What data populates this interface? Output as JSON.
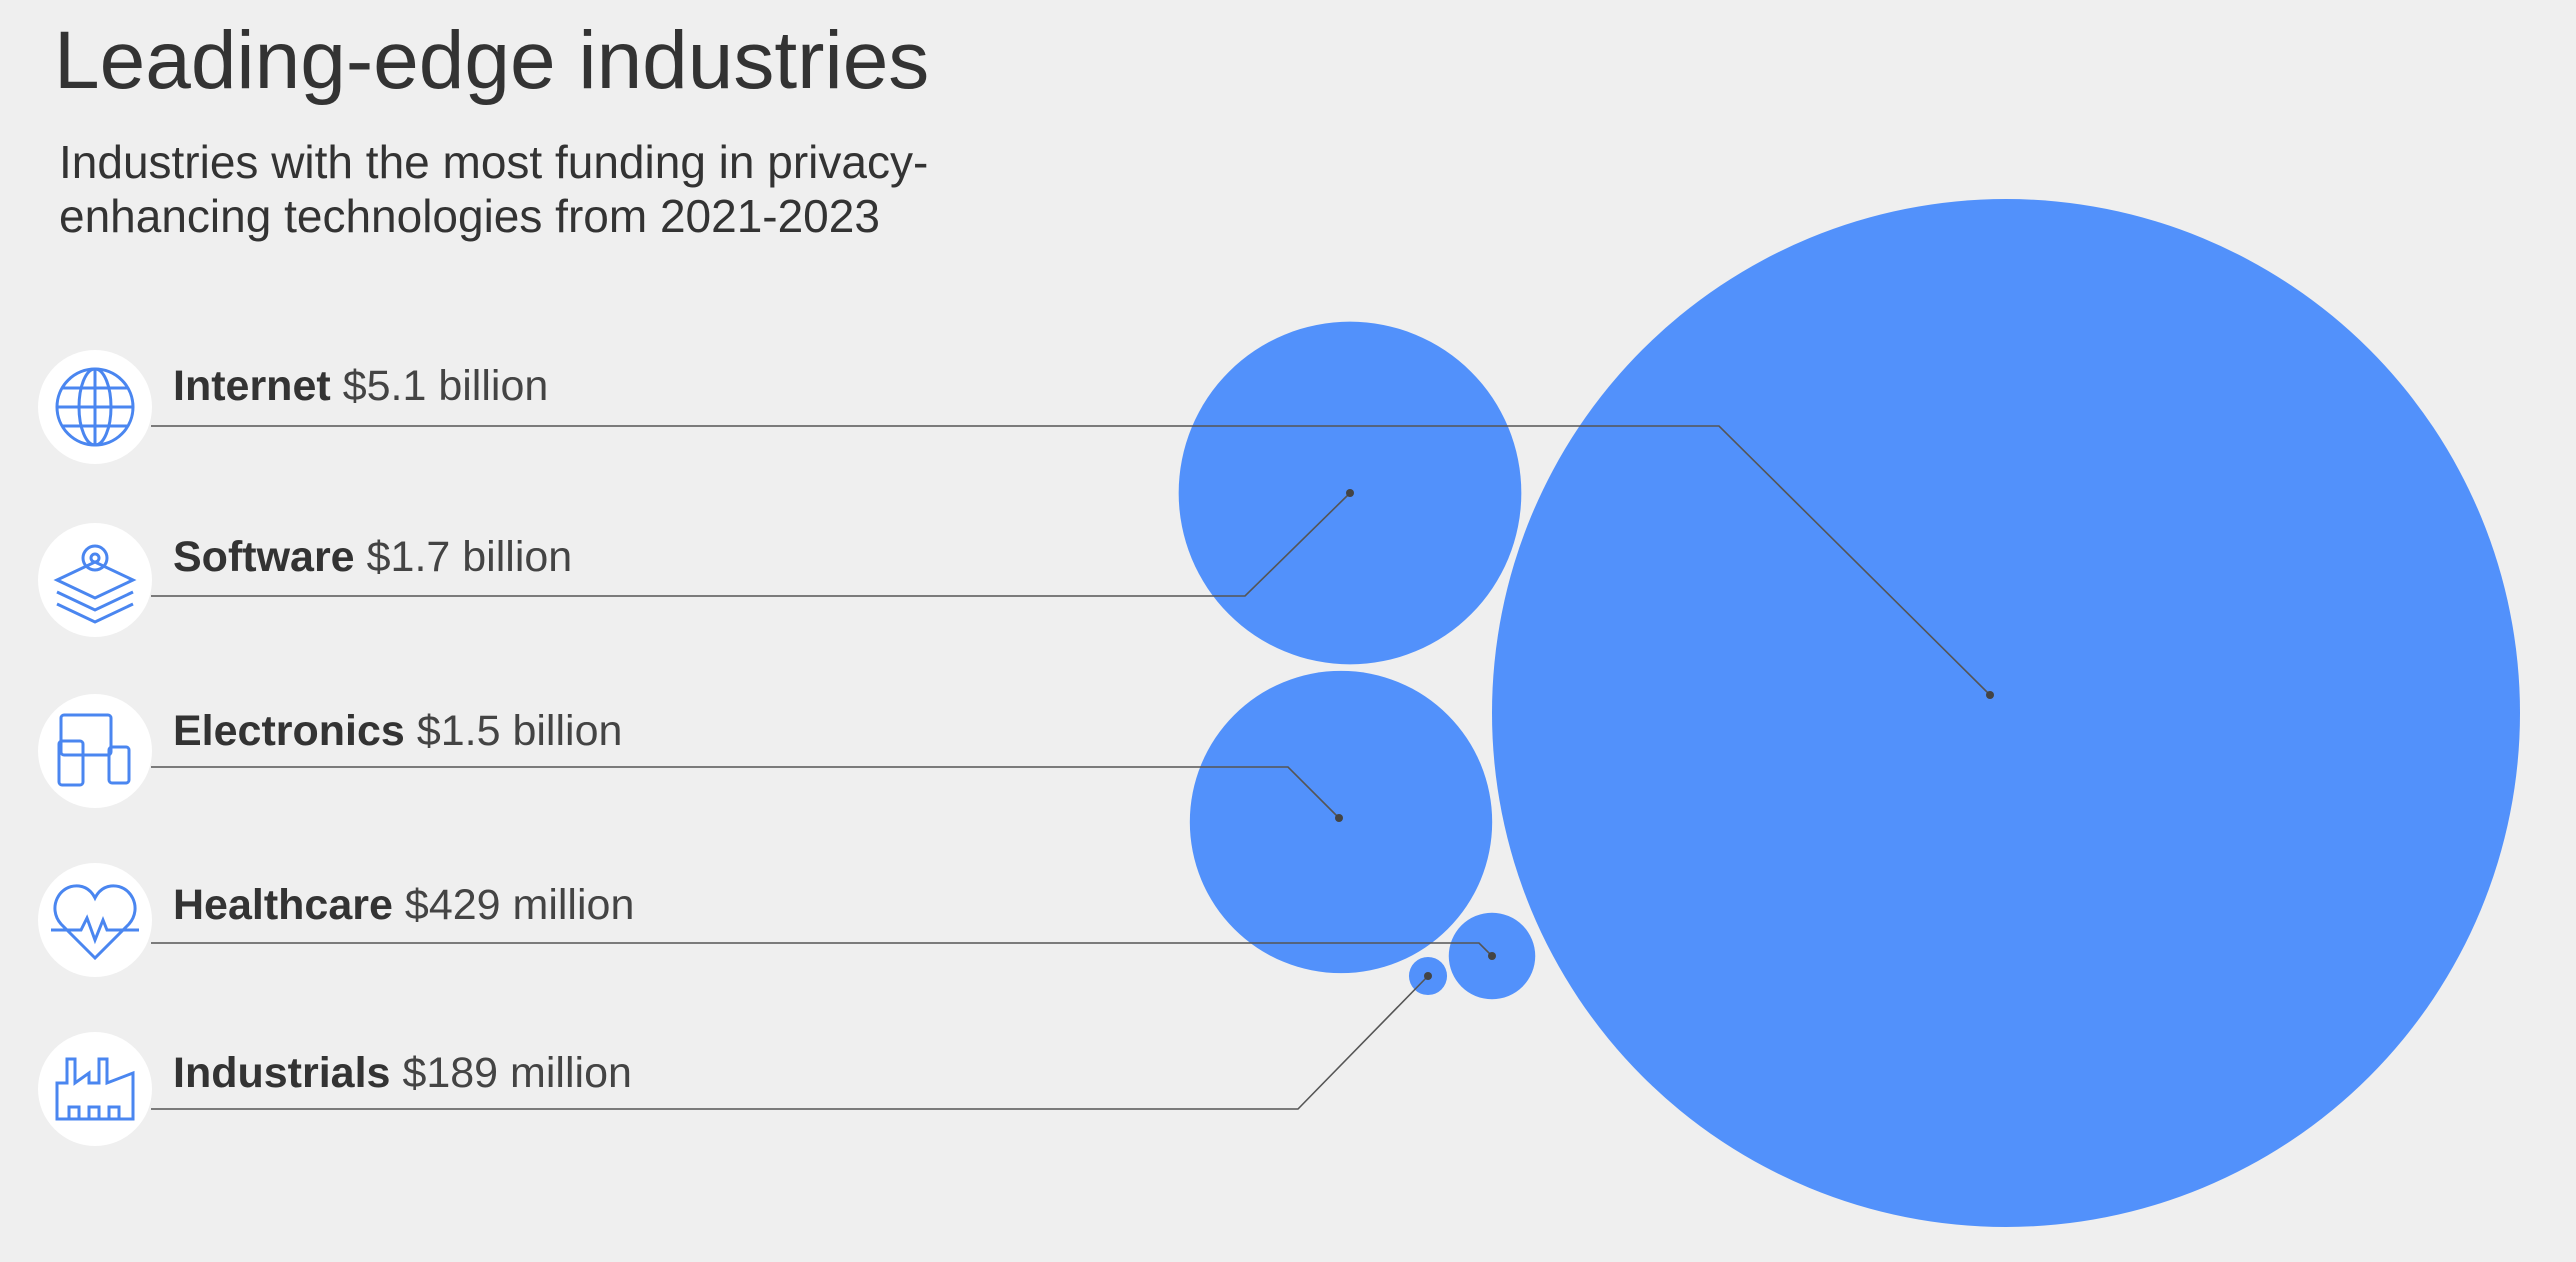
{
  "chart_data": {
    "type": "bubble",
    "title": "Leading-edge industries",
    "subtitle": [
      "Industries with the most funding in privacy-",
      "enhancing technologies from 2021-2023"
    ],
    "categories": [
      "Internet",
      "Software",
      "Electronics",
      "Healthcare",
      "Industrials"
    ],
    "values": [
      5100000000,
      1700000000,
      1500000000,
      429000000,
      189000000
    ],
    "value_labels": [
      "$5.1 billion",
      "$1.7 billion",
      "$1.5 billion",
      "$429 million",
      "$189 million"
    ],
    "color": "#5291fb"
  }
}
